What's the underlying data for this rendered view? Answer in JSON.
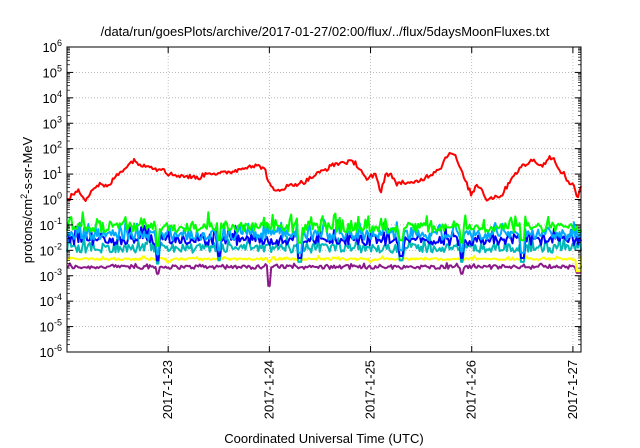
{
  "chart_data": {
    "type": "line",
    "title": "/data/run/goesPlots/archive/2017-01-27/02:00/flux/../flux/5daysMoonFluxes.txt",
    "xlabel": "Coordinated Universal Time (UTC)",
    "ylabel_parts": [
      "protons/cm",
      "2",
      "-s-sr-MeV"
    ],
    "y_scale": "log",
    "ylim_exp": [
      -6,
      6
    ],
    "y_ticks": [
      {
        "exp": -6,
        "label": "10",
        "sup": "-6"
      },
      {
        "exp": -5,
        "label": "10",
        "sup": "-5"
      },
      {
        "exp": -4,
        "label": "10",
        "sup": "-4"
      },
      {
        "exp": -3,
        "label": "10",
        "sup": "-3"
      },
      {
        "exp": -2,
        "label": "10",
        "sup": "-2"
      },
      {
        "exp": -1,
        "label": "10",
        "sup": "-1"
      },
      {
        "exp": 0,
        "label": "10",
        "sup": "0"
      },
      {
        "exp": 1,
        "label": "10",
        "sup": "1"
      },
      {
        "exp": 2,
        "label": "10",
        "sup": "2"
      },
      {
        "exp": 3,
        "label": "10",
        "sup": "3"
      },
      {
        "exp": 4,
        "label": "10",
        "sup": "4"
      },
      {
        "exp": 5,
        "label": "10",
        "sup": "5"
      },
      {
        "exp": 6,
        "label": "10",
        "sup": "6"
      }
    ],
    "xlim_days": [
      22.0,
      27.08
    ],
    "x_ticks": [
      {
        "day": 23,
        "label": "2017-1-23"
      },
      {
        "day": 24,
        "label": "2017-1-24"
      },
      {
        "day": 25,
        "label": "2017-1-25"
      },
      {
        "day": 26,
        "label": "2017-1-26"
      },
      {
        "day": 27,
        "label": "2017-1-27"
      }
    ],
    "grid": true,
    "series": [
      {
        "color": "#ff0000",
        "noise": 0.18,
        "amp": 0.12,
        "points": [
          [
            22.0,
            0.8
          ],
          [
            22.05,
            1.5
          ],
          [
            22.12,
            2.2
          ],
          [
            22.18,
            1.0
          ],
          [
            22.25,
            2.5
          ],
          [
            22.32,
            4
          ],
          [
            22.4,
            3
          ],
          [
            22.48,
            8
          ],
          [
            22.55,
            15
          ],
          [
            22.62,
            25
          ],
          [
            22.67,
            40
          ],
          [
            22.72,
            20
          ],
          [
            22.8,
            25
          ],
          [
            22.88,
            15
          ],
          [
            22.95,
            18
          ],
          [
            23.0,
            10
          ],
          [
            23.1,
            9
          ],
          [
            23.2,
            8
          ],
          [
            23.3,
            7
          ],
          [
            23.4,
            12
          ],
          [
            23.5,
            10
          ],
          [
            23.6,
            12
          ],
          [
            23.7,
            15
          ],
          [
            23.8,
            22
          ],
          [
            23.9,
            20
          ],
          [
            23.95,
            18
          ],
          [
            24.0,
            4
          ],
          [
            24.05,
            2
          ],
          [
            24.15,
            3
          ],
          [
            24.25,
            4
          ],
          [
            24.35,
            5
          ],
          [
            24.45,
            9
          ],
          [
            24.55,
            15
          ],
          [
            24.65,
            25
          ],
          [
            24.75,
            30
          ],
          [
            24.85,
            28
          ],
          [
            24.92,
            12
          ],
          [
            24.97,
            5
          ],
          [
            25.0,
            8
          ],
          [
            25.05,
            9
          ],
          [
            25.1,
            2
          ],
          [
            25.15,
            10
          ],
          [
            25.2,
            10
          ],
          [
            25.25,
            4
          ],
          [
            25.3,
            5
          ],
          [
            25.4,
            4
          ],
          [
            25.5,
            6
          ],
          [
            25.6,
            10
          ],
          [
            25.7,
            20
          ],
          [
            25.75,
            50
          ],
          [
            25.8,
            80
          ],
          [
            25.85,
            40
          ],
          [
            25.9,
            12
          ],
          [
            25.95,
            4
          ],
          [
            26.0,
            1.5
          ],
          [
            26.05,
            4
          ],
          [
            26.1,
            2.5
          ],
          [
            26.15,
            1.0
          ],
          [
            26.2,
            1.2
          ],
          [
            26.3,
            1.5
          ],
          [
            26.4,
            8
          ],
          [
            26.5,
            20
          ],
          [
            26.6,
            35
          ],
          [
            26.65,
            30
          ],
          [
            26.7,
            20
          ],
          [
            26.75,
            40
          ],
          [
            26.8,
            50
          ],
          [
            26.85,
            15
          ],
          [
            26.9,
            12
          ],
          [
            26.95,
            5
          ],
          [
            27.0,
            4
          ],
          [
            27.05,
            1.0
          ],
          [
            27.08,
            3.5
          ]
        ]
      },
      {
        "color": "#00ff00",
        "base": 0.08,
        "amp": 0.45,
        "noise": 0.38,
        "dips": [
          [
            22.9,
            0.015
          ],
          [
            23.5,
            0.025
          ],
          [
            24.3,
            0.02
          ],
          [
            25.3,
            0.025
          ],
          [
            25.9,
            0.02
          ],
          [
            26.5,
            0.025
          ]
        ]
      },
      {
        "color": "#00aaff",
        "base": 0.04,
        "amp": 0.5,
        "noise": 0.4,
        "dips": [
          [
            22.9,
            0.007
          ],
          [
            23.5,
            0.01
          ],
          [
            24.3,
            0.008
          ],
          [
            25.3,
            0.01
          ],
          [
            25.9,
            0.009
          ],
          [
            26.5,
            0.008
          ]
        ]
      },
      {
        "color": "#0000ff",
        "base": 0.025,
        "amp": 0.5,
        "noise": 0.4,
        "dips": [
          [
            22.9,
            0.004
          ],
          [
            23.5,
            0.006
          ],
          [
            24.3,
            0.005
          ],
          [
            25.3,
            0.006
          ],
          [
            25.9,
            0.005
          ],
          [
            26.5,
            0.005
          ]
        ]
      },
      {
        "color": "#00b8b8",
        "base": 0.012,
        "amp": 0.4,
        "noise": 0.35,
        "dips": [
          [
            22.9,
            0.003
          ],
          [
            23.5,
            0.004
          ],
          [
            24.3,
            0.0035
          ],
          [
            25.3,
            0.004
          ],
          [
            25.9,
            0.0035
          ],
          [
            26.5,
            0.0035
          ]
        ]
      },
      {
        "color": "#ffff00",
        "base": 0.0045,
        "amp": 0.1,
        "noise": 0.08,
        "dips": [
          [
            23.0,
            0.0035
          ],
          [
            24.0,
            0.0035
          ],
          [
            25.0,
            0.0035
          ],
          [
            27.05,
            0.0015
          ]
        ]
      },
      {
        "color": "#8b1a89",
        "base": 0.0022,
        "amp": 0.12,
        "noise": 0.15,
        "dips": [
          [
            24.0,
            0.0004
          ],
          [
            22.9,
            0.0012
          ],
          [
            25.9,
            0.0012
          ],
          [
            27.05,
            0.0013
          ]
        ]
      }
    ]
  }
}
